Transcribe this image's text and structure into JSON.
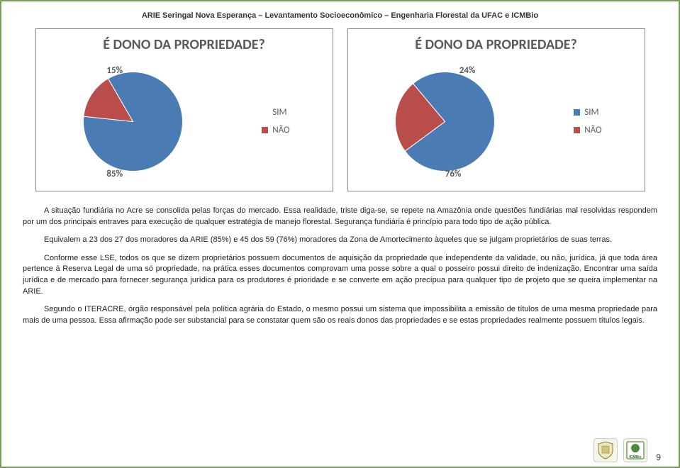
{
  "header": "ARIE Seringal Nova Esperança – Levantamento Socioeconômico – Engenharia Florestal da UFAC e ICMBio",
  "charts": {
    "left": {
      "title": "É DONO DA PROPRIEDADE?",
      "slices": [
        {
          "label": "SIM",
          "value": 85,
          "color": "#4a7cb3"
        },
        {
          "label": "NÃO",
          "value": 15,
          "color": "#b94d4a"
        }
      ],
      "label_small": "15%",
      "label_large": "85%",
      "startAngleDeg": -120
    },
    "right": {
      "title": "É DONO DA PROPRIEDADE?",
      "slices": [
        {
          "label": "SIM",
          "value": 76,
          "color": "#4a7cb3"
        },
        {
          "label": "NÃO",
          "value": 24,
          "color": "#b94d4a"
        }
      ],
      "label_small": "24%",
      "label_large": "76%",
      "startAngleDeg": -130
    }
  },
  "legend_labels": {
    "sim": "SIM",
    "nao": "NÃO"
  },
  "paragraphs": {
    "p1": "A situação fundiária no Acre se consolida pelas forças do mercado. Essa realidade, triste diga-se, se repete na Amazônia onde questões fundiárias mal resolvidas respondem por um dos principais entraves para execução de qualquer estratégia de manejo florestal. Segurança fundiária é princípio para todo tipo de ação pública.",
    "p2": "Equivalem a 23 dos 27 dos moradores da ARIE (85%) e 45 dos 59 (76%) moradores da Zona de Amortecimento àqueles que se julgam proprietários de suas terras.",
    "p3": "Conforme esse LSE, todos os que se dizem proprietários possuem documentos de aquisição da propriedade que independente da validade, ou não, jurídica, já que toda área pertence à Reserva Legal de uma só propriedade, na prática esses documentos comprovam uma posse sobre a qual o posseiro possui direito de indenização. Encontrar uma saída jurídica e de mercado para fornecer segurança jurídica para os produtores é prioridade e se converte em ação precípua para qualquer tipo de projeto que se queira implementar na ARIE.",
    "p4": "Segundo o ITERACRE, órgão responsável pela política agrária do Estado, o mesmo possui um sistema que impossibilita a emissão de títulos de uma mesma propriedade para mais de uma pessoa. Essa afirmação pode ser substancial para se constatar quem são os reais donos das propriedades e se estas propriedades realmente possuem títulos legais."
  },
  "page_number": "9",
  "colors": {
    "sim": "#4a7cb3",
    "nao": "#b94d4a",
    "sim_light": "#6b9bd1",
    "nao_light": "#d46e6b"
  }
}
